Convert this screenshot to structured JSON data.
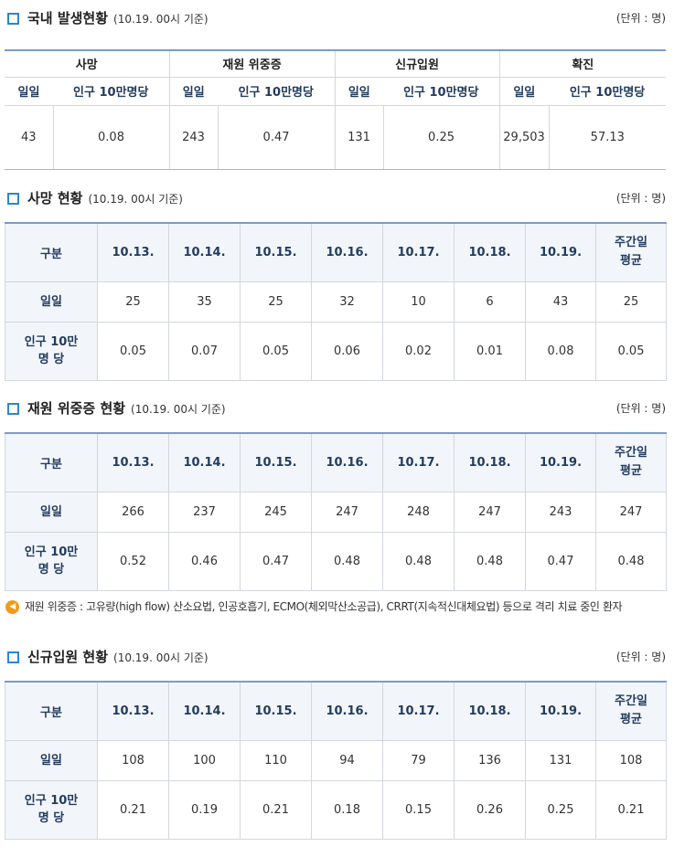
{
  "domestic": {
    "title": "국내 발생현황",
    "basis": "(10.19. 00시 기준)",
    "unit": "(단위 : 명)",
    "groups": [
      "사망",
      "재원 위중증",
      "신규입원",
      "확진"
    ],
    "sub_daily": "일일",
    "sub_per100k": "인구 10만명당",
    "values": [
      "43",
      "0.08",
      "243",
      "0.47",
      "131",
      "0.25",
      "29,503",
      "57.13"
    ]
  },
  "deaths": {
    "title": "사망 현황",
    "basis": "(10.19. 00시 기준)",
    "unit": "(단위 : 명)",
    "col_label": "구분",
    "dates": [
      "10.13.",
      "10.14.",
      "10.15.",
      "10.16.",
      "10.17.",
      "10.18.",
      "10.19."
    ],
    "avg_label": [
      "주간일",
      "평균"
    ],
    "row_daily_label": "일일",
    "row_per100k_label": [
      "인구 10만",
      "명 당"
    ],
    "daily": [
      "25",
      "35",
      "25",
      "32",
      "10",
      "6",
      "43",
      "25"
    ],
    "per100k": [
      "0.05",
      "0.07",
      "0.05",
      "0.06",
      "0.02",
      "0.01",
      "0.08",
      "0.05"
    ]
  },
  "critical": {
    "title": "재원 위중증 현황",
    "basis": "(10.19. 00시 기준)",
    "unit": "(단위 : 명)",
    "col_label": "구분",
    "dates": [
      "10.13.",
      "10.14.",
      "10.15.",
      "10.16.",
      "10.17.",
      "10.18.",
      "10.19."
    ],
    "avg_label": [
      "주간일",
      "평균"
    ],
    "row_daily_label": "일일",
    "row_per100k_label": [
      "인구 10만",
      "명 당"
    ],
    "daily": [
      "266",
      "237",
      "245",
      "247",
      "248",
      "247",
      "243",
      "247"
    ],
    "per100k": [
      "0.52",
      "0.46",
      "0.47",
      "0.48",
      "0.48",
      "0.48",
      "0.47",
      "0.48"
    ]
  },
  "note": "재원 위중증 : 고유량(high flow) 산소요법, 인공호흡기, ECMO(체외막산소공급), CRRT(지속적신대체요법) 등으로 격리 치료 중인 환자",
  "admissions": {
    "title": "신규입원 현황",
    "basis": "(10.19. 00시 기준)",
    "unit": "(단위 : 명)",
    "col_label": "구분",
    "dates": [
      "10.13.",
      "10.14.",
      "10.15.",
      "10.16.",
      "10.17.",
      "10.18.",
      "10.19."
    ],
    "avg_label": [
      "주간일",
      "평균"
    ],
    "row_daily_label": "일일",
    "row_per100k_label": [
      "인구 10만",
      "명 당"
    ],
    "daily": [
      "108",
      "100",
      "110",
      "94",
      "79",
      "136",
      "131",
      "108"
    ],
    "per100k": [
      "0.21",
      "0.19",
      "0.21",
      "0.18",
      "0.15",
      "0.26",
      "0.25",
      "0.21"
    ]
  }
}
